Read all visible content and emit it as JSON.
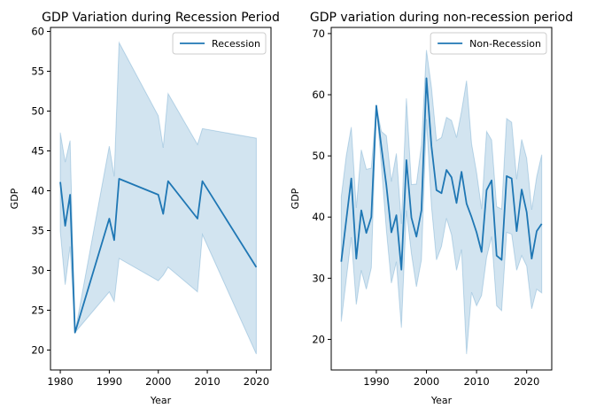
{
  "chart_data": [
    {
      "type": "line",
      "title": "GDP Variation during Recession Period",
      "xlabel": "Year",
      "ylabel": "GDP",
      "xlim": [
        1978,
        2023
      ],
      "ylim": [
        17.5,
        60.5
      ],
      "xticks": [
        1980,
        1990,
        2000,
        2010,
        2020
      ],
      "yticks": [
        20,
        25,
        30,
        35,
        40,
        45,
        50,
        55,
        60
      ],
      "legend": {
        "placement": "top-right",
        "entries": [
          "Recession"
        ]
      },
      "grid": false,
      "color": "#1f77b4",
      "band_color": "#1f77b4",
      "series": [
        {
          "name": "Recession",
          "x": [
            1980,
            1981,
            1982,
            1983,
            1990,
            1991,
            1992,
            2000,
            2001,
            2002,
            2008,
            2009,
            2020
          ],
          "values": [
            41.1,
            35.6,
            39.5,
            22.2,
            36.5,
            33.8,
            41.5,
            39.5,
            37.1,
            41.2,
            36.5,
            41.2,
            30.4
          ],
          "ci_upper": [
            47.3,
            43.6,
            46.3,
            22.2,
            45.6,
            41.8,
            58.6,
            49.4,
            45.4,
            52.2,
            45.8,
            47.8,
            46.6
          ],
          "ci_lower": [
            34.9,
            28.2,
            33.0,
            22.2,
            27.3,
            26.1,
            31.5,
            28.7,
            29.4,
            30.4,
            27.3,
            34.5,
            19.5
          ]
        }
      ]
    },
    {
      "type": "line",
      "title": "GDP variation during non-recession period",
      "xlabel": "Year",
      "ylabel": "GDP",
      "xlim": [
        1981,
        2025
      ],
      "ylim": [
        15,
        71
      ],
      "xticks": [
        1990,
        2000,
        2010,
        2020
      ],
      "yticks": [
        20,
        30,
        40,
        50,
        60,
        70
      ],
      "legend": {
        "placement": "top-right",
        "entries": [
          "Non-Recession"
        ]
      },
      "grid": false,
      "color": "#1f77b4",
      "band_color": "#1f77b4",
      "series": [
        {
          "name": "Non-Recession",
          "x": [
            1983,
            1984,
            1985,
            1986,
            1987,
            1988,
            1989,
            1990,
            1991,
            1992,
            1993,
            1994,
            1995,
            1996,
            1997,
            1998,
            1999,
            2000,
            2001,
            2002,
            2003,
            2004,
            2005,
            2006,
            2007,
            2008,
            2009,
            2010,
            2011,
            2012,
            2013,
            2014,
            2015,
            2016,
            2017,
            2018,
            2019,
            2020,
            2021,
            2022,
            2023
          ],
          "values": [
            32.7,
            39.5,
            46.3,
            33.2,
            41.1,
            37.4,
            40.0,
            58.2,
            51.5,
            45.2,
            37.5,
            40.3,
            31.4,
            49.3,
            39.9,
            36.8,
            41.1,
            62.7,
            51.6,
            44.4,
            43.9,
            47.7,
            46.5,
            42.3,
            47.4,
            42.2,
            40.0,
            37.5,
            34.3,
            44.4,
            46.0,
            33.7,
            33.0,
            46.7,
            46.3,
            37.7,
            44.5,
            40.8,
            33.2,
            37.7,
            38.9
          ],
          "ci_upper": [
            43.3,
            50.0,
            54.7,
            41.5,
            51.0,
            47.8,
            48.0,
            58.2,
            54.0,
            53.3,
            45.8,
            50.4,
            38.9,
            59.4,
            45.3,
            45.4,
            51.8,
            67.3,
            61.2,
            52.5,
            53.0,
            56.3,
            55.8,
            53.0,
            57.3,
            62.3,
            52.0,
            47.3,
            41.3,
            54.0,
            52.6,
            41.7,
            41.3,
            56.1,
            55.5,
            46.2,
            52.7,
            49.6,
            41.2,
            46.6,
            50.2
          ],
          "ci_lower": [
            22.9,
            29.8,
            36.7,
            25.7,
            31.3,
            28.2,
            31.7,
            58.2,
            48.5,
            37.9,
            29.2,
            32.7,
            21.9,
            41.1,
            34.0,
            28.6,
            33.0,
            56.0,
            41.8,
            33.0,
            35.2,
            39.8,
            37.1,
            31.3,
            34.7,
            17.6,
            27.7,
            25.5,
            27.2,
            33.4,
            36.8,
            25.5,
            24.7,
            37.5,
            37.2,
            31.3,
            33.7,
            32.0,
            25.0,
            28.2,
            27.6
          ]
        }
      ]
    }
  ]
}
